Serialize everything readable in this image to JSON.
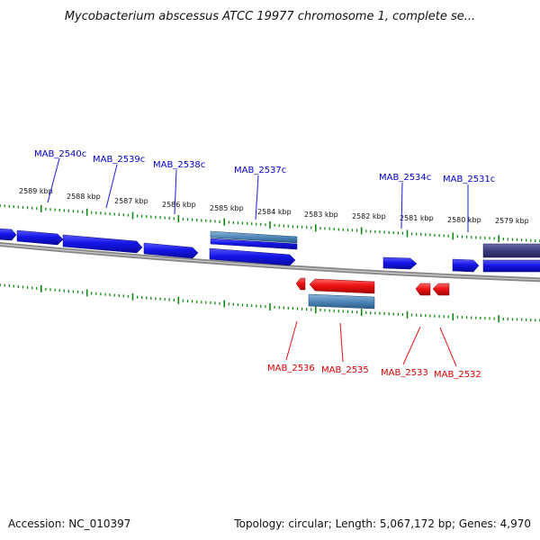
{
  "title": "Mycobacterium abscessus ATCC 19977 chromosome 1, complete se...",
  "footer": {
    "accession": "Accession: NC_010397",
    "topology": "Topology: circular; Length: 5,067,172 bp; Genes: 4,970"
  },
  "colors": {
    "forward_gene": "#1a1ae6",
    "reverse_gene": "#e61414",
    "forward_label": "#0000c8",
    "reverse_label": "#d40000",
    "tick": "#118811",
    "backbone": "#7a7a7a",
    "cds_steel": "#4f87b8",
    "dark_block": "#3c3c7c"
  },
  "scale_labels": [
    "2589 kbp",
    "2588 kbp",
    "2587 kbp",
    "2586 kbp",
    "2585 kbp",
    "2584 kbp",
    "2583 kbp",
    "2582 kbp",
    "2581 kbp",
    "2580 kbp",
    "2579 kbp"
  ],
  "forward_labels": [
    "MAB_2540c",
    "MAB_2539c",
    "MAB_2538c",
    "MAB_2537c",
    "MAB_2534c",
    "MAB_2531c"
  ],
  "reverse_labels": [
    "MAB_2536",
    "MAB_2535",
    "MAB_2533",
    "MAB_2532"
  ]
}
